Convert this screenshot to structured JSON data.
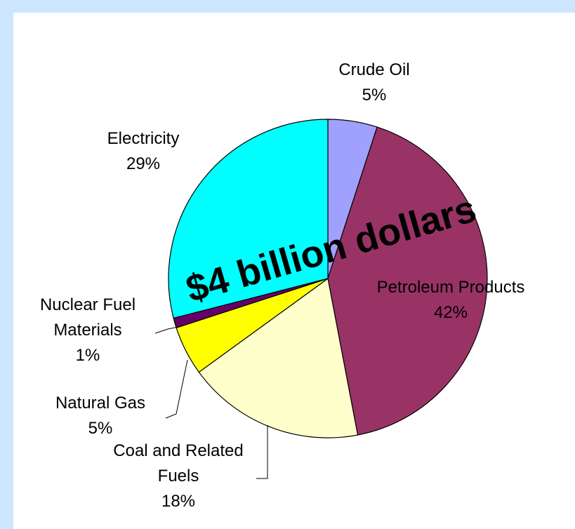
{
  "chart_data": {
    "type": "pie",
    "slices": [
      {
        "label": [
          "Crude Oil",
          "5%"
        ],
        "value": 5,
        "color": "#a0a0ff"
      },
      {
        "label": [
          "Petroleum Products",
          "42%"
        ],
        "value": 42,
        "color": "#993366"
      },
      {
        "label": [
          "Coal and Related",
          "Fuels",
          "18%"
        ],
        "value": 18,
        "color": "#ffffcc"
      },
      {
        "label": [
          "Natural Gas",
          "5%"
        ],
        "value": 5,
        "color": "#ffff00"
      },
      {
        "label": [
          "Nuclear Fuel",
          "Materials",
          "1%"
        ],
        "value": 1,
        "color": "#660066"
      },
      {
        "label": [
          "Electricity",
          "29%"
        ],
        "value": 29,
        "color": "#00ffff"
      }
    ],
    "overlay_text": "$4 billion dollars"
  }
}
